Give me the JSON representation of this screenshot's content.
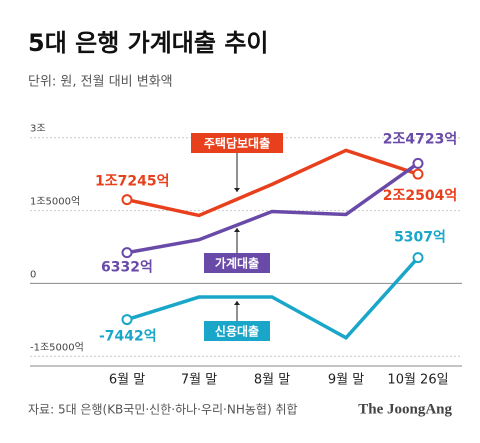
{
  "chart_data": {
    "type": "line",
    "title": "5대 은행 가계대출 추이",
    "subtitle": "단위: 원, 전월 대비 변화액",
    "source": "자료: 5대 은행(KB국민·신한·하나·우리·NH농협) 취합",
    "brand": "The JoongAng",
    "categories": [
      "6월 말",
      "7월 말",
      "8월 말",
      "9월 말",
      "10월 26일"
    ],
    "ylim": [
      -17000,
      32000
    ],
    "yticks": [
      {
        "value": 30000,
        "label": "3조"
      },
      {
        "value": 15000,
        "label": "1조5000억"
      },
      0,
      {
        "value": -15000,
        "label": "-1조5000억"
      }
    ],
    "grid": true,
    "series": [
      {
        "name": "주택담보대출",
        "color": "#e8401c",
        "values": [
          17245,
          14000,
          20400,
          27400,
          22504
        ],
        "value_labels": [
          "1조7245억",
          null,
          null,
          null,
          "2조2504억"
        ]
      },
      {
        "name": "가계대출",
        "color": "#6a4aa8",
        "values": [
          6332,
          9000,
          14800,
          14200,
          24723
        ],
        "value_labels": [
          "6332억",
          null,
          null,
          null,
          "2조4723억"
        ]
      },
      {
        "name": "신용대출",
        "color": "#1aa6c9",
        "values": [
          -7442,
          -2800,
          -2800,
          -11200,
          5307
        ],
        "value_labels": [
          "-7442억",
          null,
          null,
          null,
          "5307억"
        ]
      }
    ]
  }
}
